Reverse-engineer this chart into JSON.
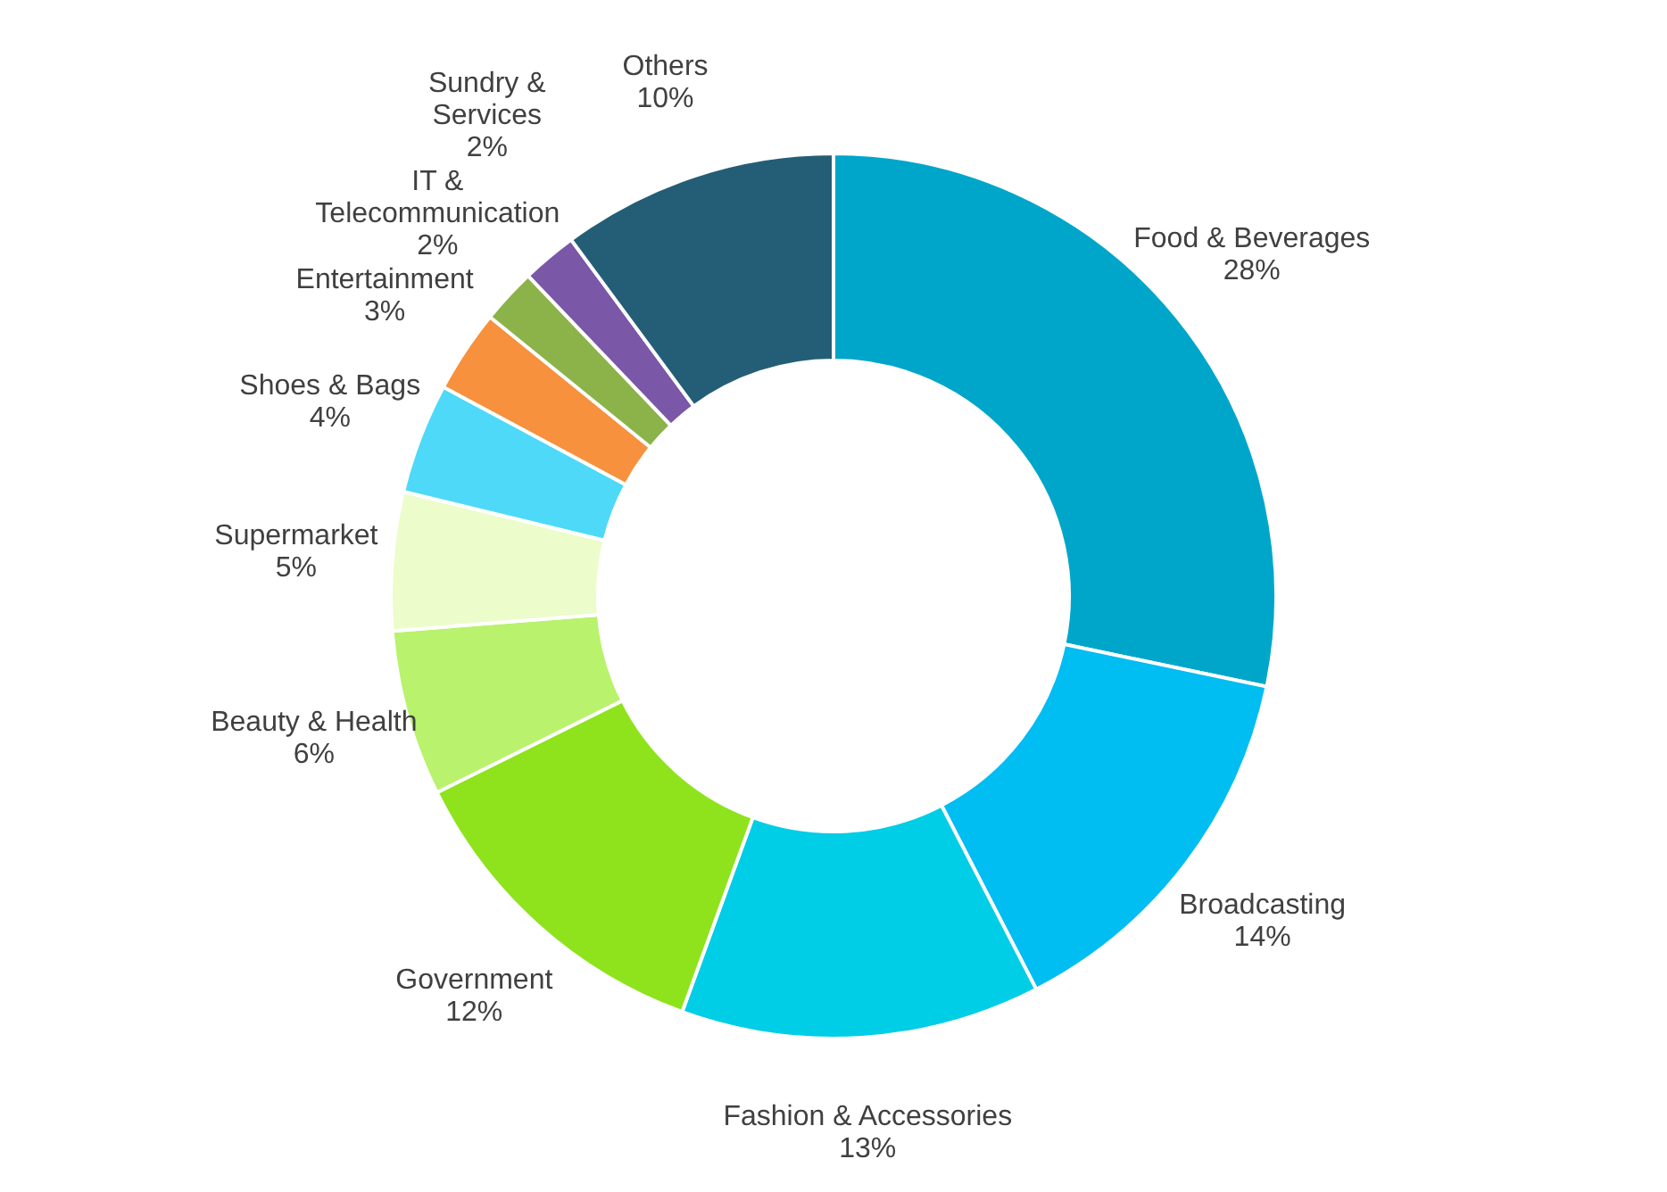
{
  "chart_data": {
    "type": "donut",
    "categories": [
      "Food & Beverages",
      "Broadcasting",
      "Fashion & Accessories",
      "Government",
      "Beauty & Health",
      "Supermarket",
      "Shoes & Bags",
      "Entertainment",
      "IT & Telecommunication",
      "Sundry & Services",
      "Others"
    ],
    "values": [
      28,
      14,
      13,
      12,
      6,
      5,
      4,
      3,
      2,
      2,
      10
    ],
    "value_labels": [
      "28%",
      "14%",
      "13%",
      "12%",
      "6%",
      "5%",
      "4%",
      "3%",
      "2%",
      "2%",
      "10%"
    ],
    "colors": [
      "#00a6ca",
      "#00bdf2",
      "#00cde6",
      "#8ee31c",
      "#b9f26c",
      "#ecfccb",
      "#4ed9f8",
      "#f7913d",
      "#8cb34a",
      "#7b57a8",
      "#245e76"
    ]
  }
}
